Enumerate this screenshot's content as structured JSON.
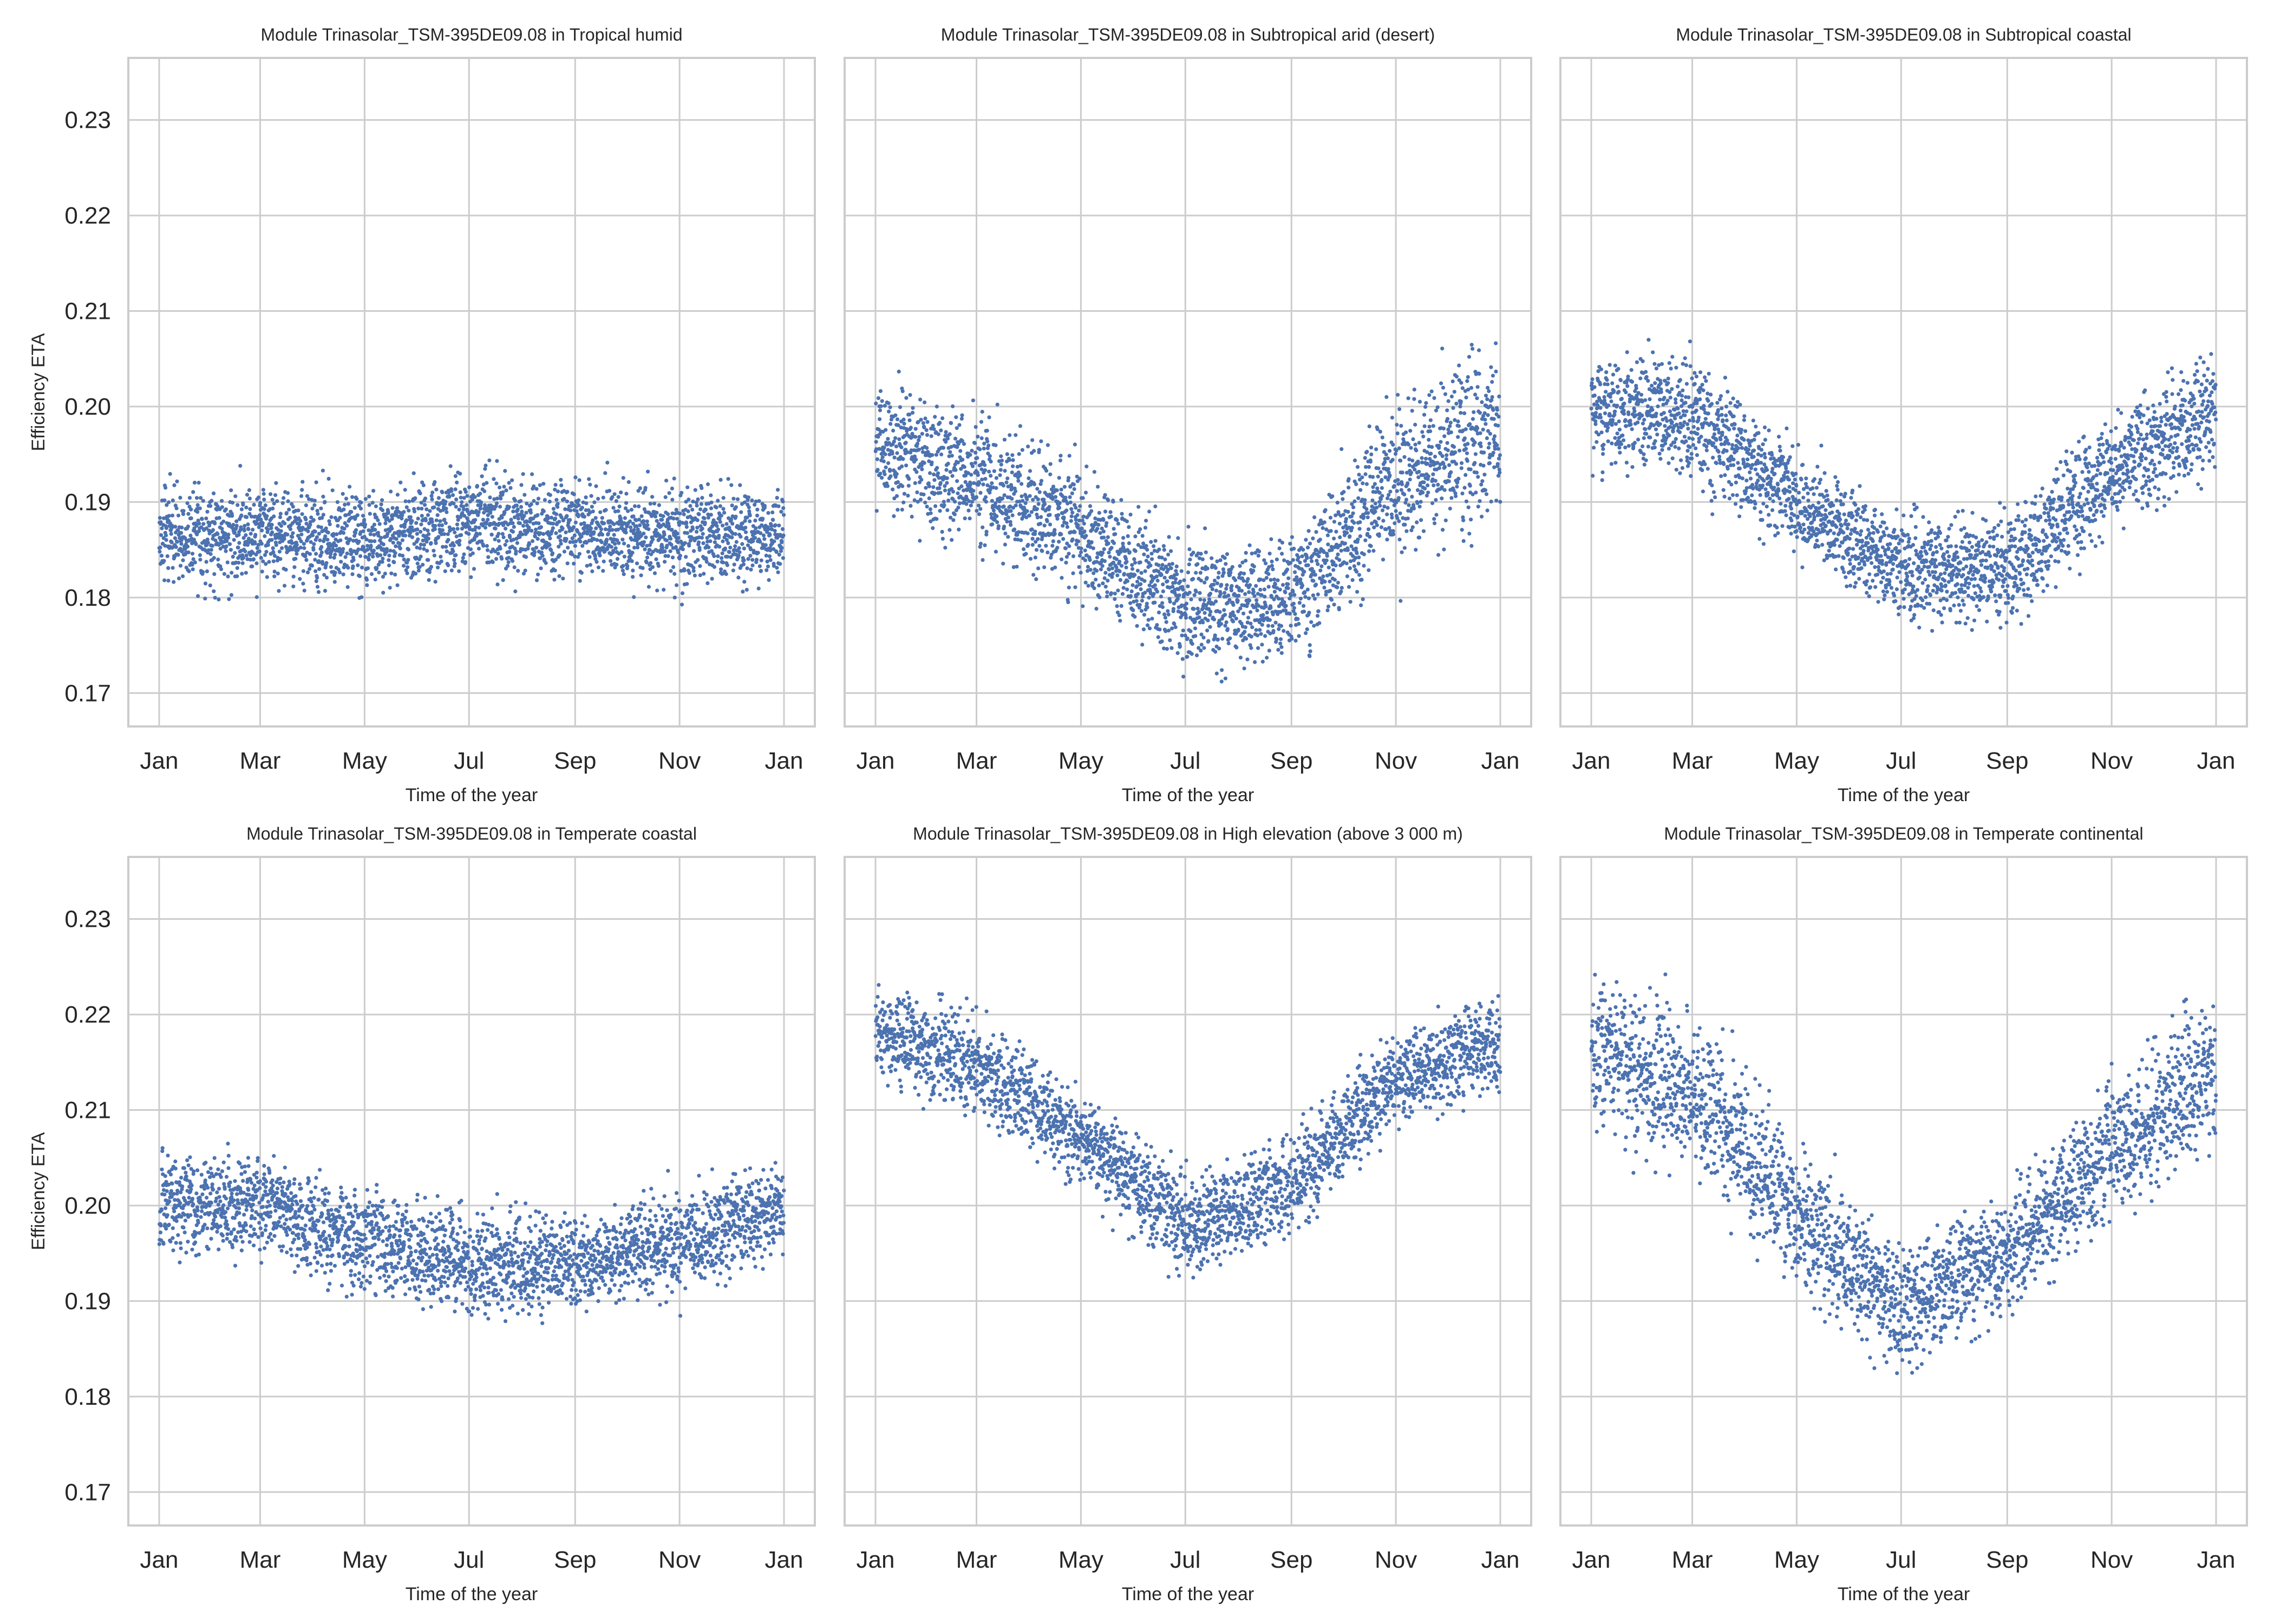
{
  "chart_data": [
    {
      "type": "scatter",
      "title": "Module Trinasolar_TSM-395DE09.08 in Tropical humid",
      "xlabel": "Time of the year",
      "ylabel": "Efficiency ETA",
      "xticks": [
        "Jan",
        "Mar",
        "May",
        "Jul",
        "Sep",
        "Nov",
        "Jan"
      ],
      "yticks": [
        "0.17",
        "0.18",
        "0.19",
        "0.20",
        "0.21",
        "0.22",
        "0.23"
      ],
      "xlim": [
        "2023-01-01",
        "2024-01-01"
      ],
      "ylim": [
        0.1665,
        0.2365
      ],
      "grid": true,
      "series": [
        {
          "color": "#4c72b0",
          "profile": [
            [
              "2023-01-01",
              0.1805,
              0.1865,
              0.192
            ],
            [
              "2023-03-01",
              0.1805,
              0.1865,
              0.192
            ],
            [
              "2023-05-01",
              0.18,
              0.186,
              0.191
            ],
            [
              "2023-07-01",
              0.1815,
              0.188,
              0.1935
            ],
            [
              "2023-09-01",
              0.1808,
              0.187,
              0.192
            ],
            [
              "2023-11-01",
              0.1805,
              0.1865,
              0.192
            ],
            [
              "2024-01-01",
              0.1805,
              0.1865,
              0.192
            ]
          ]
        }
      ]
    },
    {
      "type": "scatter",
      "title": "Module Trinasolar_TSM-395DE09.08 in Subtropical arid (desert)",
      "xlabel": "Time of the year",
      "ylabel": "",
      "xticks": [
        "Jan",
        "Mar",
        "May",
        "Jul",
        "Sep",
        "Nov",
        "Jan"
      ],
      "yticks": [],
      "xlim": [
        "2023-01-01",
        "2024-01-01"
      ],
      "ylim": [
        0.1665,
        0.2365
      ],
      "grid": true,
      "series": [
        {
          "color": "#4c72b0",
          "profile": [
            [
              "2023-01-01",
              0.19,
              0.196,
              0.204
            ],
            [
              "2023-03-01",
              0.185,
              0.192,
              0.2
            ],
            [
              "2023-05-01",
              0.181,
              0.187,
              0.196
            ],
            [
              "2023-07-01",
              0.173,
              0.179,
              0.188
            ],
            [
              "2023-09-01",
              0.174,
              0.18,
              0.188
            ],
            [
              "2023-11-01",
              0.183,
              0.192,
              0.201
            ],
            [
              "2024-01-01",
              0.19,
              0.198,
              0.208
            ]
          ]
        }
      ]
    },
    {
      "type": "scatter",
      "title": "Module Trinasolar_TSM-395DE09.08 in Subtropical coastal",
      "xlabel": "Time of the year",
      "ylabel": "",
      "xticks": [
        "Jan",
        "Mar",
        "May",
        "Jul",
        "Sep",
        "Nov",
        "Jan"
      ],
      "yticks": [],
      "xlim": [
        "2023-01-01",
        "2024-01-01"
      ],
      "ylim": [
        0.1665,
        0.2365
      ],
      "grid": true,
      "series": [
        {
          "color": "#4c72b0",
          "profile": [
            [
              "2023-01-01",
              0.195,
              0.2,
              0.206
            ],
            [
              "2023-03-01",
              0.192,
              0.199,
              0.206
            ],
            [
              "2023-05-01",
              0.185,
              0.19,
              0.197
            ],
            [
              "2023-07-01",
              0.179,
              0.183,
              0.19
            ],
            [
              "2023-09-01",
              0.178,
              0.183,
              0.19
            ],
            [
              "2023-11-01",
              0.187,
              0.193,
              0.2
            ],
            [
              "2024-01-01",
              0.194,
              0.2,
              0.208
            ]
          ]
        }
      ]
    },
    {
      "type": "scatter",
      "title": "Module Trinasolar_TSM-395DE09.08 in Temperate coastal",
      "xlabel": "Time of the year",
      "ylabel": "Efficiency ETA",
      "xticks": [
        "Jan",
        "Mar",
        "May",
        "Jul",
        "Sep",
        "Nov",
        "Jan"
      ],
      "yticks": [
        "0.17",
        "0.18",
        "0.19",
        "0.20",
        "0.21",
        "0.22",
        "0.23"
      ],
      "xlim": [
        "2023-01-01",
        "2024-01-01"
      ],
      "ylim": [
        0.1665,
        0.2365
      ],
      "grid": true,
      "series": [
        {
          "color": "#4c72b0",
          "profile": [
            [
              "2023-01-01",
              0.195,
              0.2,
              0.206
            ],
            [
              "2023-03-01",
              0.195,
              0.2,
              0.206
            ],
            [
              "2023-05-01",
              0.191,
              0.196,
              0.203
            ],
            [
              "2023-07-01",
              0.189,
              0.194,
              0.201
            ],
            [
              "2023-09-01",
              0.189,
              0.194,
              0.2
            ],
            [
              "2023-11-01",
              0.191,
              0.196,
              0.203
            ],
            [
              "2024-01-01",
              0.195,
              0.2,
              0.206
            ]
          ]
        }
      ]
    },
    {
      "type": "scatter",
      "title": "Module Trinasolar_TSM-395DE09.08 in High elevation (above 3 000 m)",
      "xlabel": "Time of the year",
      "ylabel": "",
      "xticks": [
        "Jan",
        "Mar",
        "May",
        "Jul",
        "Sep",
        "Nov",
        "Jan"
      ],
      "yticks": [],
      "xlim": [
        "2023-01-01",
        "2024-01-01"
      ],
      "ylim": [
        0.1665,
        0.2365
      ],
      "grid": true,
      "series": [
        {
          "color": "#4c72b0",
          "profile": [
            [
              "2023-01-01",
              0.214,
              0.218,
              0.224
            ],
            [
              "2023-03-01",
              0.209,
              0.215,
              0.221
            ],
            [
              "2023-05-01",
              0.202,
              0.207,
              0.212
            ],
            [
              "2023-07-01",
              0.193,
              0.198,
              0.205
            ],
            [
              "2023-09-01",
              0.197,
              0.202,
              0.208
            ],
            [
              "2023-11-01",
              0.208,
              0.213,
              0.218
            ],
            [
              "2024-01-01",
              0.212,
              0.217,
              0.223
            ]
          ]
        }
      ]
    },
    {
      "type": "scatter",
      "title": "Module Trinasolar_TSM-395DE09.08 in Temperate continental",
      "xlabel": "Time of the year",
      "ylabel": "",
      "xticks": [
        "Jan",
        "Mar",
        "May",
        "Jul",
        "Sep",
        "Nov",
        "Jan"
      ],
      "yticks": [],
      "xlim": [
        "2023-01-01",
        "2024-01-01"
      ],
      "ylim": [
        0.1665,
        0.2365
      ],
      "grid": true,
      "series": [
        {
          "color": "#4c72b0",
          "profile": [
            [
              "2023-01-01",
              0.208,
              0.216,
              0.226
            ],
            [
              "2023-03-01",
              0.203,
              0.212,
              0.221
            ],
            [
              "2023-05-01",
              0.191,
              0.199,
              0.207
            ],
            [
              "2023-07-01",
              0.183,
              0.189,
              0.197
            ],
            [
              "2023-09-01",
              0.189,
              0.195,
              0.203
            ],
            [
              "2023-11-01",
              0.198,
              0.206,
              0.214
            ],
            [
              "2024-01-01",
              0.206,
              0.214,
              0.222
            ]
          ]
        }
      ]
    }
  ]
}
